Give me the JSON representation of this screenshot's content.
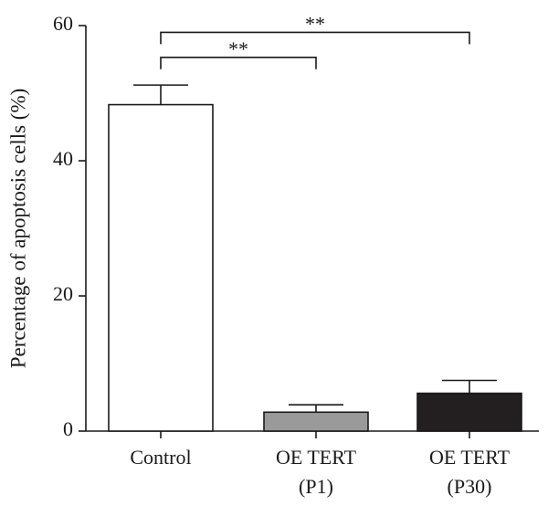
{
  "chart_data": {
    "type": "bar",
    "title": "",
    "xlabel": "",
    "ylabel": "Percentage of apoptosis cells (%)",
    "ylim": [
      0,
      60
    ],
    "yticks": [
      0,
      20,
      40,
      60
    ],
    "categories": [
      {
        "line1": "Control",
        "line2": ""
      },
      {
        "line1": "OE TERT",
        "line2": "(P1)"
      },
      {
        "line1": "OE TERT",
        "line2": "(P30)"
      }
    ],
    "values": [
      48.3,
      2.8,
      5.6
    ],
    "errors": [
      2.9,
      1.1,
      1.9
    ],
    "bar_colors": [
      "#ffffff",
      "#9a9a9a",
      "#231f20"
    ],
    "significance": [
      {
        "from": 0,
        "to": 1,
        "label": "**",
        "level": 55.3
      },
      {
        "from": 0,
        "to": 2,
        "label": "**",
        "level": 59.0
      }
    ],
    "grid": false
  }
}
